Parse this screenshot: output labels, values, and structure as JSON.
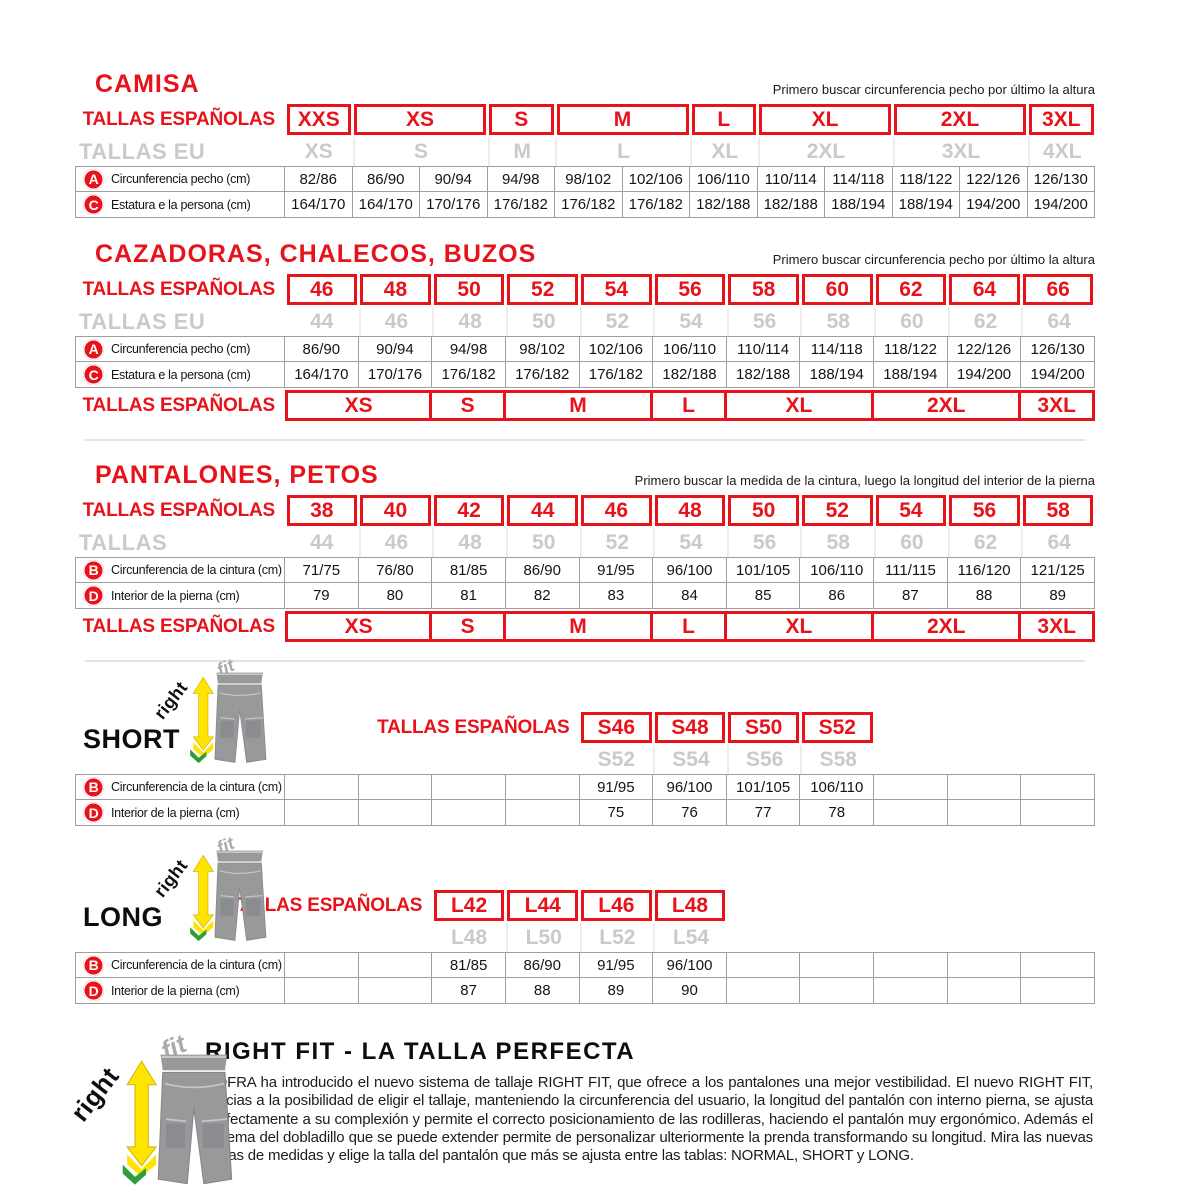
{
  "colors": {
    "accent_red": "#e8121a",
    "eu_gray": "#c9cacc",
    "arrow_yellow": "#ffe400",
    "arrow_green": "#2f9e3a"
  },
  "logo": {
    "right": "right",
    "fit": "fit"
  },
  "sections": {
    "camisa": {
      "title": "CAMISA",
      "note": "Primero buscar circunferencia pecho por último la altura",
      "cols": 12,
      "rows": [
        {
          "type": "red",
          "label": "TALLAS ESPAÑOLAS",
          "cells": [
            {
              "t": "XXS",
              "s": 1
            },
            {
              "t": "XS",
              "s": 2
            },
            {
              "t": "S",
              "s": 1
            },
            {
              "t": "M",
              "s": 2
            },
            {
              "t": "L",
              "s": 1
            },
            {
              "t": "XL",
              "s": 2
            },
            {
              "t": "2XL",
              "s": 2
            },
            {
              "t": "3XL",
              "s": 1
            }
          ]
        },
        {
          "type": "gray",
          "label": "TALLAS EU",
          "cells": [
            {
              "t": "XS",
              "s": 1
            },
            {
              "t": "S",
              "s": 2
            },
            {
              "t": "M",
              "s": 1
            },
            {
              "t": "L",
              "s": 2
            },
            {
              "t": "XL",
              "s": 1
            },
            {
              "t": "2XL",
              "s": 2
            },
            {
              "t": "3XL",
              "s": 2
            },
            {
              "t": "4XL",
              "s": 1
            }
          ]
        },
        {
          "type": "data",
          "badge": "A",
          "label": "Circunferencia pecho (cm)",
          "values": [
            "82/86",
            "86/90",
            "90/94",
            "94/98",
            "98/102",
            "102/106",
            "106/110",
            "110/114",
            "114/118",
            "118/122",
            "122/126",
            "126/130"
          ]
        },
        {
          "type": "data",
          "badge": "C",
          "label": "Estatura e la persona (cm)",
          "values": [
            "164/170",
            "164/170",
            "170/176",
            "176/182",
            "176/182",
            "176/182",
            "182/188",
            "182/188",
            "188/194",
            "188/194",
            "194/200",
            "194/200"
          ]
        }
      ]
    },
    "cazadoras": {
      "title": "CAZADORAS, CHALECOS, BUZOS",
      "note": "Primero buscar circunferencia pecho por último la altura",
      "cols": 11,
      "rows": [
        {
          "type": "red",
          "label": "TALLAS ESPAÑOLAS",
          "cells": [
            {
              "t": "46",
              "s": 1
            },
            {
              "t": "48",
              "s": 1
            },
            {
              "t": "50",
              "s": 1
            },
            {
              "t": "52",
              "s": 1
            },
            {
              "t": "54",
              "s": 1
            },
            {
              "t": "56",
              "s": 1
            },
            {
              "t": "58",
              "s": 1
            },
            {
              "t": "60",
              "s": 1
            },
            {
              "t": "62",
              "s": 1
            },
            {
              "t": "64",
              "s": 1
            },
            {
              "t": "66",
              "s": 1
            }
          ]
        },
        {
          "type": "gray",
          "label": "TALLAS EU",
          "cells": [
            {
              "t": "44",
              "s": 1
            },
            {
              "t": "46",
              "s": 1
            },
            {
              "t": "48",
              "s": 1
            },
            {
              "t": "50",
              "s": 1
            },
            {
              "t": "52",
              "s": 1
            },
            {
              "t": "54",
              "s": 1
            },
            {
              "t": "56",
              "s": 1
            },
            {
              "t": "58",
              "s": 1
            },
            {
              "t": "60",
              "s": 1
            },
            {
              "t": "62",
              "s": 1
            },
            {
              "t": "64",
              "s": 1
            }
          ]
        },
        {
          "type": "data",
          "badge": "A",
          "label": "Circunferencia pecho (cm)",
          "values": [
            "86/90",
            "90/94",
            "94/98",
            "98/102",
            "102/106",
            "106/110",
            "110/114",
            "114/118",
            "118/122",
            "122/126",
            "126/130"
          ]
        },
        {
          "type": "data",
          "badge": "C",
          "label": "Estatura e la persona (cm)",
          "values": [
            "164/170",
            "170/176",
            "176/182",
            "176/182",
            "176/182",
            "182/188",
            "182/188",
            "188/194",
            "188/194",
            "194/200",
            "194/200"
          ]
        },
        {
          "type": "red",
          "cls": "strip",
          "label": "TALLAS ESPAÑOLAS",
          "cells": [
            {
              "t": "XS",
              "s": 2
            },
            {
              "t": "S",
              "s": 1
            },
            {
              "t": "M",
              "s": 2
            },
            {
              "t": "L",
              "s": 1
            },
            {
              "t": "XL",
              "s": 2
            },
            {
              "t": "2XL",
              "s": 2
            },
            {
              "t": "3XL",
              "s": 1
            }
          ]
        }
      ]
    },
    "pantalones": {
      "title": "PANTALONES, PETOS",
      "note": "Primero buscar la medida de la cintura, luego la longitud del interior de la pierna",
      "cols": 11,
      "rows": [
        {
          "type": "red",
          "label": "TALLAS ESPAÑOLAS",
          "cells": [
            {
              "t": "38",
              "s": 1
            },
            {
              "t": "40",
              "s": 1
            },
            {
              "t": "42",
              "s": 1
            },
            {
              "t": "44",
              "s": 1
            },
            {
              "t": "46",
              "s": 1
            },
            {
              "t": "48",
              "s": 1
            },
            {
              "t": "50",
              "s": 1
            },
            {
              "t": "52",
              "s": 1
            },
            {
              "t": "54",
              "s": 1
            },
            {
              "t": "56",
              "s": 1
            },
            {
              "t": "58",
              "s": 1
            }
          ]
        },
        {
          "type": "gray",
          "label": "TALLAS",
          "cells": [
            {
              "t": "44",
              "s": 1
            },
            {
              "t": "46",
              "s": 1
            },
            {
              "t": "48",
              "s": 1
            },
            {
              "t": "50",
              "s": 1
            },
            {
              "t": "52",
              "s": 1
            },
            {
              "t": "54",
              "s": 1
            },
            {
              "t": "56",
              "s": 1
            },
            {
              "t": "58",
              "s": 1
            },
            {
              "t": "60",
              "s": 1
            },
            {
              "t": "62",
              "s": 1
            },
            {
              "t": "64",
              "s": 1
            }
          ]
        },
        {
          "type": "data",
          "badge": "B",
          "label": "Circunferencia de la cintura (cm)",
          "values": [
            "71/75",
            "76/80",
            "81/85",
            "86/90",
            "91/95",
            "96/100",
            "101/105",
            "106/110",
            "111/115",
            "116/120",
            "121/125"
          ]
        },
        {
          "type": "data",
          "badge": "D",
          "label": "Interior de la pierna (cm)",
          "values": [
            "79",
            "80",
            "81",
            "82",
            "83",
            "84",
            "85",
            "86",
            "87",
            "88",
            "89"
          ]
        },
        {
          "type": "red",
          "cls": "strip",
          "label": "TALLAS ESPAÑOLAS",
          "cells": [
            {
              "t": "XS",
              "s": 2
            },
            {
              "t": "S",
              "s": 1
            },
            {
              "t": "M",
              "s": 2
            },
            {
              "t": "L",
              "s": 1
            },
            {
              "t": "XL",
              "s": 2
            },
            {
              "t": "2XL",
              "s": 2
            },
            {
              "t": "3XL",
              "s": 1
            }
          ]
        }
      ]
    },
    "short": {
      "name": "SHORT",
      "cols": 11,
      "rows": [
        {
          "type": "red",
          "label": "TALLAS ESPAÑOLAS",
          "lead": 4,
          "cells": [
            {
              "t": "S46",
              "s": 1
            },
            {
              "t": "S48",
              "s": 1
            },
            {
              "t": "S50",
              "s": 1
            },
            {
              "t": "S52",
              "s": 1
            }
          ]
        },
        {
          "type": "gray",
          "label": "",
          "lead": 4,
          "cells": [
            {
              "t": "S52",
              "s": 1
            },
            {
              "t": "S54",
              "s": 1
            },
            {
              "t": "S56",
              "s": 1
            },
            {
              "t": "S58",
              "s": 1
            }
          ]
        },
        {
          "type": "data",
          "badge": "B",
          "label": "Circunferencia de la cintura (cm)",
          "values": [
            "",
            "",
            "",
            "",
            "91/95",
            "96/100",
            "101/105",
            "106/110",
            "",
            "",
            ""
          ]
        },
        {
          "type": "data",
          "badge": "D",
          "label": "Interior de la pierna (cm)",
          "values": [
            "",
            "",
            "",
            "",
            "75",
            "76",
            "77",
            "78",
            "",
            "",
            ""
          ]
        }
      ]
    },
    "long": {
      "name": "LONG",
      "cols": 11,
      "rows": [
        {
          "type": "red",
          "label": "TALLAS ESPAÑOLAS",
          "lead": 2,
          "cells": [
            {
              "t": "L42",
              "s": 1
            },
            {
              "t": "L44",
              "s": 1
            },
            {
              "t": "L46",
              "s": 1
            },
            {
              "t": "L48",
              "s": 1
            }
          ]
        },
        {
          "type": "gray",
          "label": "",
          "lead": 2,
          "cells": [
            {
              "t": "L48",
              "s": 1
            },
            {
              "t": "L50",
              "s": 1
            },
            {
              "t": "L52",
              "s": 1
            },
            {
              "t": "L54",
              "s": 1
            }
          ]
        },
        {
          "type": "data",
          "badge": "B",
          "label": "Circunferencia de la cintura (cm)",
          "values": [
            "",
            "",
            "81/85",
            "86/90",
            "91/95",
            "96/100",
            "",
            "",
            "",
            "",
            ""
          ]
        },
        {
          "type": "data",
          "badge": "D",
          "label": "Interior de la pierna (cm)",
          "values": [
            "",
            "",
            "87",
            "88",
            "89",
            "90",
            "",
            "",
            "",
            "",
            ""
          ]
        }
      ]
    },
    "rightfit": {
      "title": "RIGHT FIT - LA TALLA PERFECTA",
      "paragraph": "COFRA ha introducido el nuevo sistema de tallaje RIGHT FIT, que ofrece a los pantalones una mejor vestibilidad. El nuevo RIGHT FIT, gracias a la posibilidad de eligir el tallaje, manteniendo la circunferencia del usuario, la longitud del pantalón con interno pierna, se ajusta perfectamente a su complexión y permite el correcto posicionamiento de las rodilleras, haciendo el pantalón muy ergonómico. Además el sistema del dobladillo que se puede extender permite de personalizar ulteriormente la prenda transformando su longitud. Mira las nuevas tablas de medidas y elige la talla del pantalón que más se ajusta entre las tablas: NORMAL, SHORT y LONG."
    }
  }
}
